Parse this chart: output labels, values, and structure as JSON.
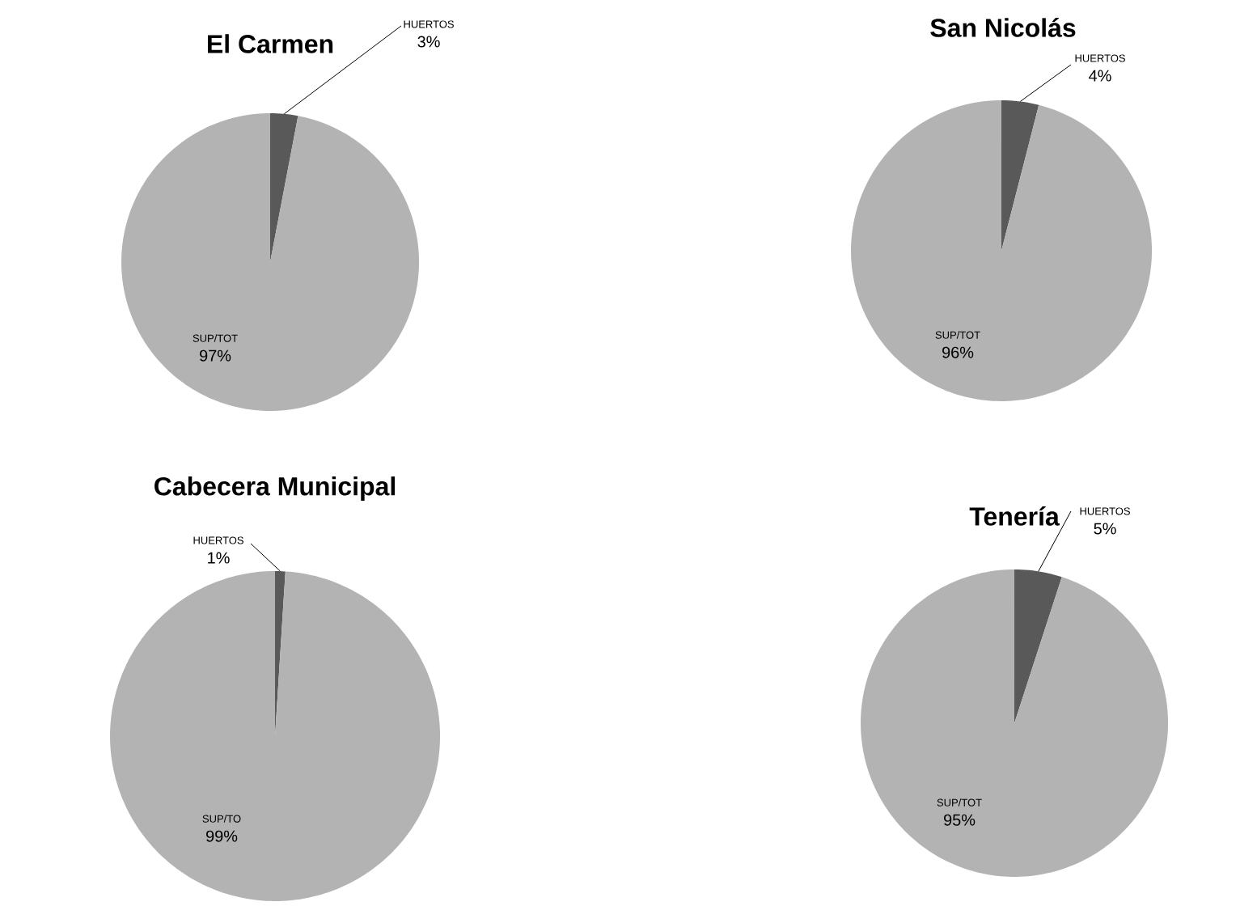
{
  "chart_data": [
    {
      "type": "pie",
      "title": "El Carmen",
      "categories": [
        "HUERTOS",
        "SUP/TOT"
      ],
      "values": [
        3,
        97
      ],
      "colors": [
        "#595959",
        "#b3b3b3"
      ],
      "value_labels": [
        "3%",
        "97%"
      ]
    },
    {
      "type": "pie",
      "title": "San Nicolás",
      "categories": [
        "HUERTOS",
        "SUP/TOT"
      ],
      "values": [
        4,
        96
      ],
      "colors": [
        "#595959",
        "#b3b3b3"
      ],
      "value_labels": [
        "4%",
        "96%"
      ]
    },
    {
      "type": "pie",
      "title": "Cabecera Municipal",
      "categories": [
        "HUERTOS",
        "SUP/TO"
      ],
      "values": [
        1,
        99
      ],
      "colors": [
        "#595959",
        "#b3b3b3"
      ],
      "value_labels": [
        "1%",
        "99%"
      ]
    },
    {
      "type": "pie",
      "title": "Tenería",
      "categories": [
        "HUERTOS",
        "SUP/TOT"
      ],
      "values": [
        5,
        95
      ],
      "colors": [
        "#595959",
        "#b3b3b3"
      ],
      "value_labels": [
        "5%",
        "95%"
      ]
    }
  ]
}
